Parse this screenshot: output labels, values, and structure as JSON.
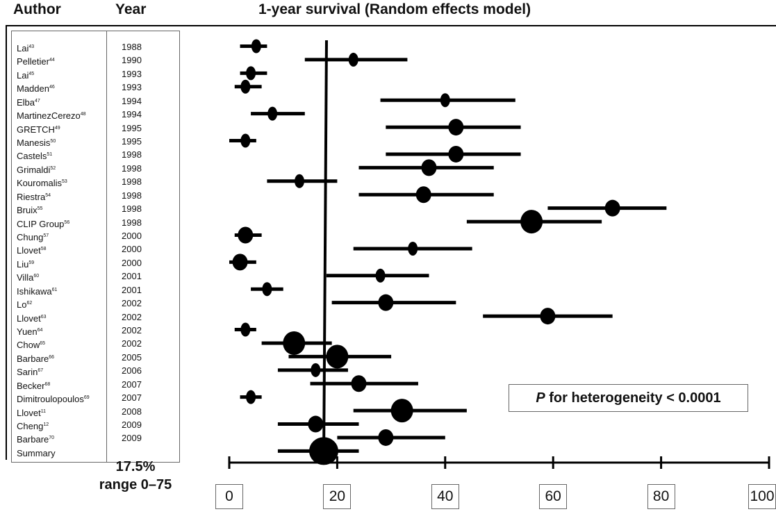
{
  "headers": {
    "author": "Author",
    "year": "Year",
    "title": "1-year survival (Random effects model)"
  },
  "summary": {
    "value": "17.5%",
    "range": "range 0–75"
  },
  "heterogeneity": {
    "p": "P",
    "rest": " for heterogeneity < 0.0001"
  },
  "chart_data": {
    "type": "forest",
    "title": "1-year survival (Random effects model)",
    "xlim": [
      0,
      100
    ],
    "x_ticks": [
      "0",
      "20",
      "40",
      "60",
      "80",
      "100"
    ],
    "reference_line": 17.5,
    "studies": [
      {
        "author": "Lai",
        "ref": "43",
        "year": "1988",
        "est": 5,
        "lo": 2,
        "hi": 7,
        "size": "small"
      },
      {
        "author": "Pelletier",
        "ref": "44",
        "year": "1990",
        "est": 23,
        "lo": 14,
        "hi": 33,
        "size": "small"
      },
      {
        "author": "Lai",
        "ref": "45",
        "year": "1993",
        "est": 4,
        "lo": 2,
        "hi": 7,
        "size": "small"
      },
      {
        "author": "Madden",
        "ref": "46",
        "year": "1993",
        "est": 3,
        "lo": 1,
        "hi": 6,
        "size": "small"
      },
      {
        "author": "Elba",
        "ref": "47",
        "year": "1994",
        "est": 40,
        "lo": 28,
        "hi": 53,
        "size": "small"
      },
      {
        "author": "MartinezCerezo",
        "ref": "48",
        "year": "1994",
        "est": 8,
        "lo": 4,
        "hi": 14,
        "size": "small"
      },
      {
        "author": "GRETCH",
        "ref": "49",
        "year": "1995",
        "est": 42,
        "lo": 29,
        "hi": 54,
        "size": "medium"
      },
      {
        "author": "Manesis",
        "ref": "50",
        "year": "1995",
        "est": 3,
        "lo": 0,
        "hi": 5,
        "size": "small"
      },
      {
        "author": "Castels",
        "ref": "51",
        "year": "1998",
        "est": 42,
        "lo": 29,
        "hi": 54,
        "size": "medium"
      },
      {
        "author": "Grimaldi",
        "ref": "52",
        "year": "1998",
        "est": 37,
        "lo": 24,
        "hi": 49,
        "size": "medium"
      },
      {
        "author": "Kouromalis",
        "ref": "53",
        "year": "1998",
        "est": 13,
        "lo": 7,
        "hi": 20,
        "size": "small"
      },
      {
        "author": "Riestra",
        "ref": "54",
        "year": "1998",
        "est": 36,
        "lo": 24,
        "hi": 49,
        "size": "medium"
      },
      {
        "author": "Bruix",
        "ref": "55",
        "year": "1998",
        "est": 71,
        "lo": 59,
        "hi": 81,
        "size": "medium"
      },
      {
        "author": "CLIP Group",
        "ref": "56",
        "year": "1998",
        "est": 56,
        "lo": 44,
        "hi": 69,
        "size": "large"
      },
      {
        "author": "Chung",
        "ref": "57",
        "year": "2000",
        "est": 3,
        "lo": 1,
        "hi": 6,
        "size": "medium"
      },
      {
        "author": "Llovet",
        "ref": "58",
        "year": "2000",
        "est": 34,
        "lo": 23,
        "hi": 45,
        "size": "small"
      },
      {
        "author": "Liu",
        "ref": "59",
        "year": "2000",
        "est": 2,
        "lo": 0,
        "hi": 5,
        "size": "medium"
      },
      {
        "author": "Villa",
        "ref": "60",
        "year": "2001",
        "est": 28,
        "lo": 18,
        "hi": 37,
        "size": "small"
      },
      {
        "author": "Ishikawa",
        "ref": "61",
        "year": "2001",
        "est": 7,
        "lo": 4,
        "hi": 10,
        "size": "small"
      },
      {
        "author": "Lo",
        "ref": "62",
        "year": "2002",
        "est": 29,
        "lo": 19,
        "hi": 42,
        "size": "medium"
      },
      {
        "author": "Llovet",
        "ref": "63",
        "year": "2002",
        "est": 59,
        "lo": 47,
        "hi": 71,
        "size": "medium"
      },
      {
        "author": "Yuen",
        "ref": "64",
        "year": "2002",
        "est": 3,
        "lo": 1,
        "hi": 5,
        "size": "small"
      },
      {
        "author": "Chow",
        "ref": "65",
        "year": "2002",
        "est": 12,
        "lo": 6,
        "hi": 19,
        "size": "large"
      },
      {
        "author": "Barbare",
        "ref": "66",
        "year": "2005",
        "est": 20,
        "lo": 11,
        "hi": 30,
        "size": "large"
      },
      {
        "author": "Sarin",
        "ref": "67",
        "year": "2006",
        "est": 16,
        "lo": 9,
        "hi": 22,
        "size": "small"
      },
      {
        "author": "Becker",
        "ref": "68",
        "year": "2007",
        "est": 24,
        "lo": 15,
        "hi": 35,
        "size": "medium"
      },
      {
        "author": "Dimitroulopoulos",
        "ref": "69",
        "year": "2007",
        "est": 4,
        "lo": 2,
        "hi": 6,
        "size": "small"
      },
      {
        "author": "Llovet",
        "ref": "11",
        "year": "2008",
        "est": 32,
        "lo": 23,
        "hi": 44,
        "size": "large"
      },
      {
        "author": "Cheng",
        "ref": "12",
        "year": "2009",
        "est": 16,
        "lo": 9,
        "hi": 24,
        "size": "medium"
      },
      {
        "author": "Barbare",
        "ref": "70",
        "year": "2009",
        "est": 29,
        "lo": 20,
        "hi": 40,
        "size": "medium"
      },
      {
        "author": "Summary",
        "ref": "",
        "year": "",
        "est": 17.5,
        "lo": 9,
        "hi": 24,
        "size": "xlarge"
      }
    ]
  }
}
